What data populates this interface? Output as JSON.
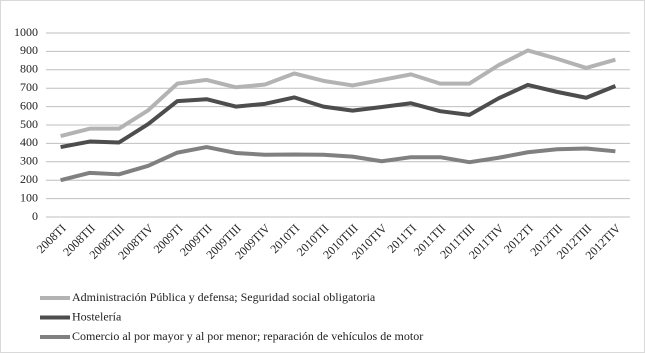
{
  "chart_data": {
    "type": "line",
    "categories": [
      "2008TI",
      "2008TII",
      "2008TIII",
      "2008TIV",
      "2009TI",
      "2009TII",
      "2009TIII",
      "2009TIV",
      "2010TI",
      "2010TII",
      "2010TIII",
      "2010TIV",
      "2011TI",
      "2011TII",
      "2011TIII",
      "2011TIV",
      "2012TI",
      "2012TII",
      "2012TIII",
      "2012TIV"
    ],
    "series": [
      {
        "name": "Administración Pública y defensa; Seguridad social obligatoria",
        "color": "#b3b3b3",
        "values": [
          440,
          480,
          480,
          580,
          725,
          745,
          705,
          720,
          780,
          740,
          715,
          745,
          775,
          725,
          725,
          825,
          905,
          860,
          810,
          855
        ]
      },
      {
        "name": "Hostelería",
        "color": "#4d4d4d",
        "values": [
          380,
          410,
          405,
          505,
          630,
          640,
          600,
          615,
          650,
          600,
          578,
          598,
          618,
          575,
          555,
          645,
          718,
          680,
          648,
          712
        ]
      },
      {
        "name": "Comercio al por mayor y al por menor; reparación de vehículos de motor",
        "color": "#808080",
        "values": [
          200,
          240,
          232,
          278,
          350,
          380,
          348,
          338,
          340,
          338,
          328,
          303,
          325,
          325,
          298,
          322,
          352,
          368,
          372,
          357
        ]
      }
    ],
    "ylim": [
      0,
      1000
    ],
    "yticks": [
      0,
      100,
      200,
      300,
      400,
      500,
      600,
      700,
      800,
      900,
      1000
    ],
    "grid": true
  }
}
